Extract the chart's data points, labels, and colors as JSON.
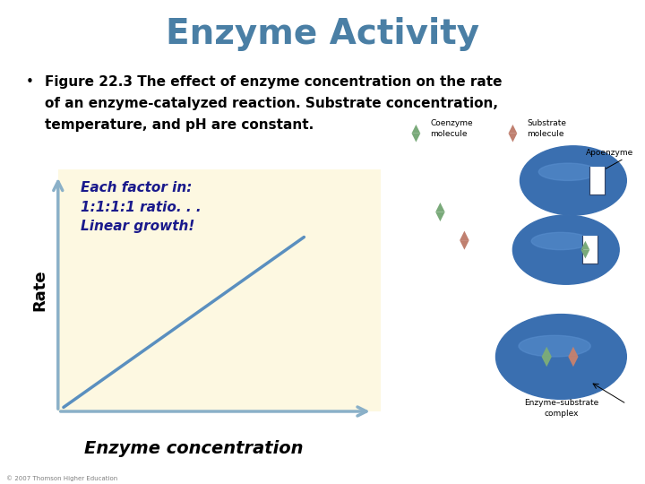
{
  "title": "Enzyme Activity",
  "title_color": "#4a7fa5",
  "title_fontsize": 28,
  "bullet_text_line1": "Figure 22.3 The effect of enzyme concentration on the rate",
  "bullet_text_line2": "of an enzyme-catalyzed reaction. Substrate concentration,",
  "bullet_text_line3": "temperature, and pH are constant.",
  "bullet_fontsize": 11,
  "annotation_text": "Each factor in:\n1:1:1:1 ratio. . .\nLinear growth!",
  "annotation_fontsize": 11,
  "annotation_color": "#1a1a8c",
  "rate_label": "Rate",
  "xlabel": "Enzyme concentration",
  "xlabel_fontsize": 14,
  "rate_fontsize": 13,
  "graph_bg": "#fdf8e1",
  "line_color": "#5a8fbf",
  "axis_color": "#8ab0c8",
  "copyright_text": "© 2007 Thomson Higher Education",
  "copyright_fontsize": 5,
  "bg_color": "#ffffff",
  "coenzyme_color": "#7aaa7a",
  "substrate_color": "#c08070",
  "enzyme_color": "#3a6fb0",
  "enzyme_highlight": "#5a90d0"
}
